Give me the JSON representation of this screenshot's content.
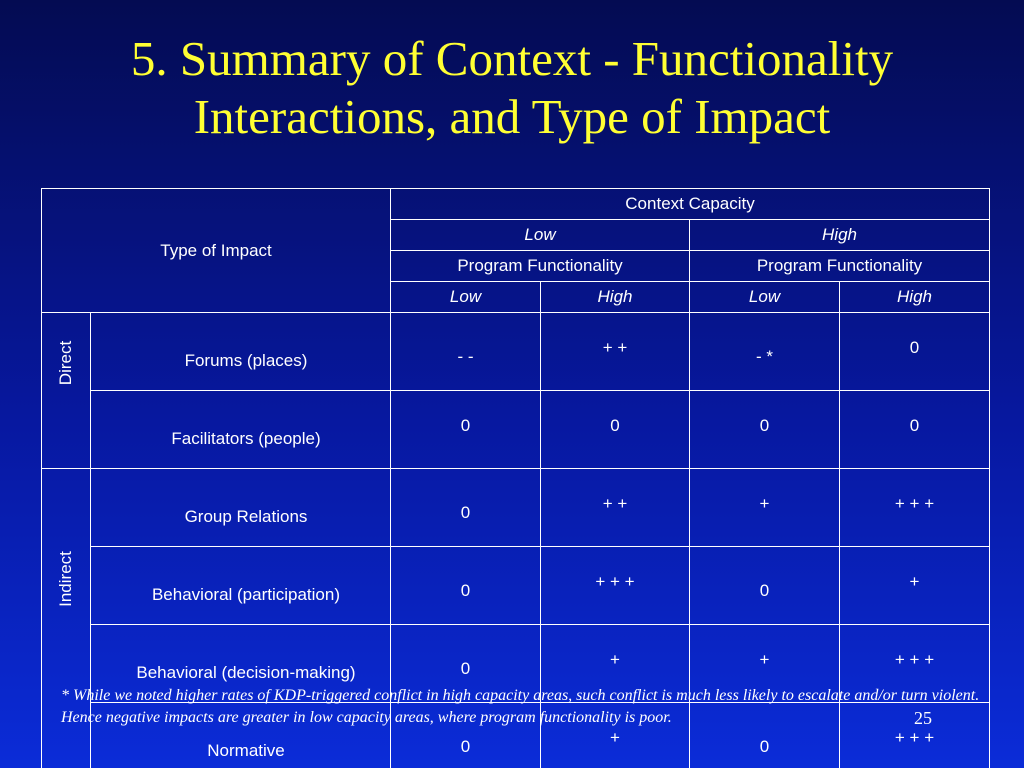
{
  "title": {
    "line1": "5. Summary of Context - Functionality",
    "line2": "Interactions, and Type of Impact"
  },
  "table": {
    "corner_label": "Type of Impact",
    "context_header": "Context Capacity",
    "capacity_levels": [
      "Low",
      "High"
    ],
    "program_functionality": [
      "Program Functionality",
      "Program Functionality"
    ],
    "functionality_levels": [
      "Low",
      "High",
      "Low",
      "High"
    ],
    "groups": [
      {
        "name": "Direct",
        "rows": [
          {
            "label": "Forums (places)",
            "values": [
              "- -",
              "+ +",
              "- *",
              "0"
            ]
          },
          {
            "label": "Facilitators (people)",
            "values": [
              "0",
              "0",
              "0",
              "0"
            ]
          }
        ]
      },
      {
        "name": "Indirect",
        "rows": [
          {
            "label": "Group Relations",
            "values": [
              "0",
              "+ +",
              "+",
              "+ + +"
            ]
          },
          {
            "label": "Behavioral (participation)",
            "values": [
              "0",
              "+ + +",
              "0",
              "+"
            ]
          },
          {
            "label": "Behavioral (decision-making)",
            "values": [
              "0",
              "+",
              "+",
              "+ + +"
            ]
          },
          {
            "label": "Normative",
            "values": [
              "0",
              "+",
              "0",
              "+ + +"
            ]
          }
        ]
      }
    ]
  },
  "footnote": "* While we noted higher rates of KDP-triggered conflict in high capacity areas, such conflict is much less likely to escalate and/or turn violent.  Hence negative impacts are greater in low capacity areas, where program functionality is poor.",
  "page_number": "25",
  "colors": {
    "title": "#ffff33",
    "background_top": "#040b52",
    "background_bottom": "#0b2cd8",
    "text": "#ffffff"
  }
}
